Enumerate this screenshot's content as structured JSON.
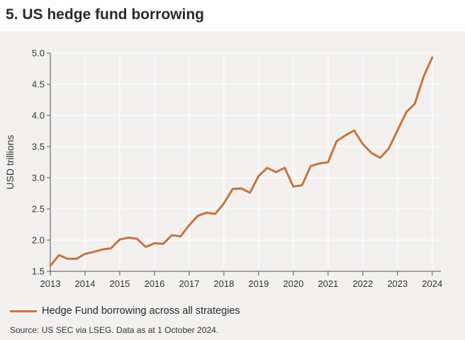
{
  "header": {
    "title": "5. US hedge fund borrowing"
  },
  "footer": {
    "source": "Source: US SEC via LSEG. Data as at 1 October 2024."
  },
  "colors": {
    "line": "#c8743a",
    "axis": "#555555",
    "grid": "#ffffff"
  },
  "chart_data": {
    "type": "line",
    "title": "5. US hedge fund borrowing",
    "xlabel": "",
    "ylabel": "USD trillions",
    "xlim": [
      2013,
      2024.25
    ],
    "ylim": [
      1.5,
      5.0
    ],
    "xticks": [
      "2013",
      "2014",
      "2015",
      "2016",
      "2017",
      "2018",
      "2019",
      "2020",
      "2021",
      "2022",
      "2023",
      "2024"
    ],
    "yticks": [
      "1.5",
      "2.0",
      "2.5",
      "3.0",
      "3.5",
      "4.0",
      "4.5",
      "5.0"
    ],
    "grid": true,
    "legend": "bottom-left",
    "series": [
      {
        "name": "Hedge Fund borrowing across all strategies",
        "x": [
          2013.0,
          2013.25,
          2013.5,
          2013.75,
          2014.0,
          2014.25,
          2014.5,
          2014.75,
          2015.0,
          2015.25,
          2015.5,
          2015.75,
          2016.0,
          2016.25,
          2016.5,
          2016.75,
          2017.0,
          2017.25,
          2017.5,
          2017.75,
          2018.0,
          2018.25,
          2018.5,
          2018.75,
          2019.0,
          2019.25,
          2019.5,
          2019.75,
          2020.0,
          2020.25,
          2020.5,
          2020.75,
          2021.0,
          2021.25,
          2021.5,
          2021.75,
          2022.0,
          2022.25,
          2022.5,
          2022.75,
          2023.0,
          2023.25,
          2023.5,
          2023.75,
          2024.0
        ],
        "values": [
          1.59,
          1.76,
          1.7,
          1.7,
          1.78,
          1.81,
          1.85,
          1.87,
          2.01,
          2.04,
          2.02,
          1.89,
          1.95,
          1.94,
          2.08,
          2.06,
          2.24,
          2.39,
          2.44,
          2.42,
          2.59,
          2.82,
          2.83,
          2.76,
          3.03,
          3.16,
          3.09,
          3.16,
          2.86,
          2.88,
          3.19,
          3.23,
          3.25,
          3.59,
          3.68,
          3.76,
          3.54,
          3.4,
          3.32,
          3.47,
          3.76,
          4.05,
          4.19,
          4.62,
          4.93
        ]
      }
    ]
  }
}
